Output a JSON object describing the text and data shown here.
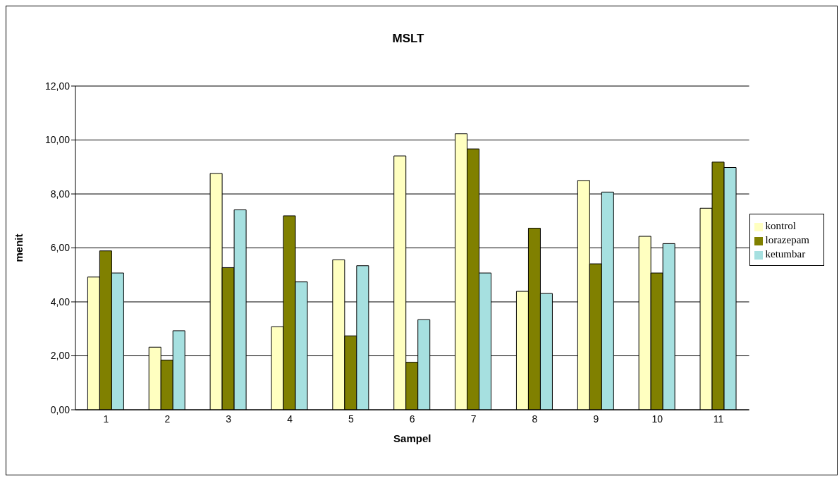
{
  "chart_data": {
    "type": "bar",
    "title": "MSLT",
    "xlabel": "Sampel",
    "ylabel": "menit",
    "categories": [
      "1",
      "2",
      "3",
      "4",
      "5",
      "6",
      "7",
      "8",
      "9",
      "10",
      "11"
    ],
    "series": [
      {
        "name": "kontrol",
        "color": "#ffffc0",
        "values": [
          4.92,
          2.32,
          8.76,
          3.08,
          5.56,
          9.41,
          10.23,
          4.39,
          8.5,
          6.43,
          7.47
        ]
      },
      {
        "name": "lorazepam",
        "color": "#808000",
        "values": [
          5.89,
          1.84,
          5.27,
          7.19,
          2.74,
          1.76,
          9.67,
          6.73,
          5.41,
          5.07,
          9.18
        ]
      },
      {
        "name": "ketumbar",
        "color": "#a6e0e0",
        "values": [
          5.07,
          2.93,
          7.41,
          4.74,
          5.34,
          3.34,
          5.07,
          4.31,
          8.07,
          6.16,
          8.98
        ]
      }
    ],
    "ylim": [
      0,
      12
    ],
    "yticks": [
      {
        "value": 0,
        "label": "0,00"
      },
      {
        "value": 2,
        "label": "2,00"
      },
      {
        "value": 4,
        "label": "4,00"
      },
      {
        "value": 6,
        "label": "6,00"
      },
      {
        "value": 8,
        "label": "8,00"
      },
      {
        "value": 10,
        "label": "10,00"
      },
      {
        "value": 12,
        "label": "12,00"
      }
    ],
    "grid": "y",
    "legend": "right"
  }
}
